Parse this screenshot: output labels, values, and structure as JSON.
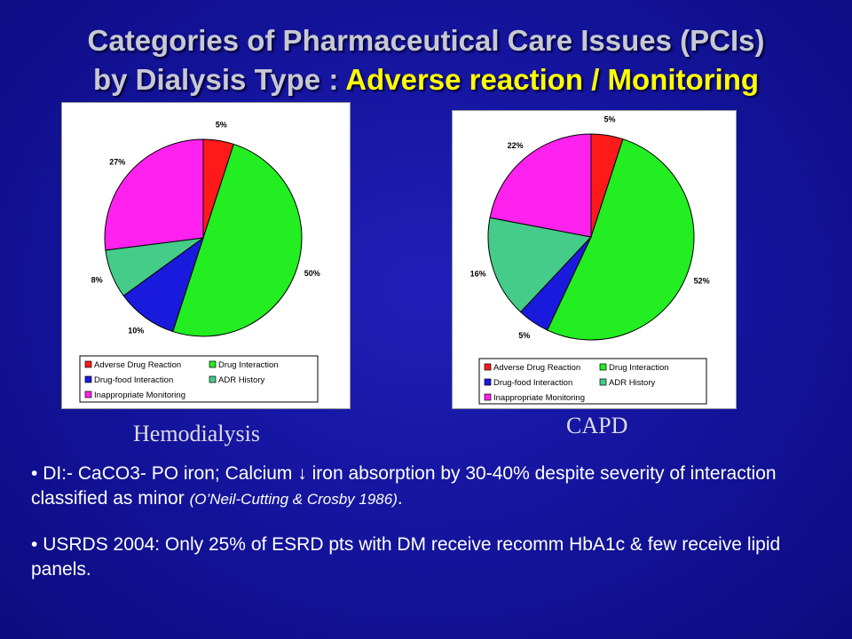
{
  "title": {
    "line1": "Categories of Pharmaceutical Care Issues (PCIs)",
    "line2_prefix": "by Dialysis Type : ",
    "line2_highlight": "Adverse reaction / Monitoring"
  },
  "legend_entries": [
    "Adverse Drug Reaction",
    "Drug Interaction",
    "Drug-food Interaction",
    "ADR History",
    "Inappropriate Monitoring"
  ],
  "colors": {
    "Adverse Drug Reaction": "#ff1a1a",
    "Drug Interaction": "#22ee22",
    "Drug-food Interaction": "#1a1add",
    "ADR History": "#44cc88",
    "Inappropriate Monitoring": "#ff22ee"
  },
  "chart_data": [
    {
      "type": "pie",
      "caption": "Hemodialysis",
      "legend_placement": "bottom",
      "categories": [
        "Adverse Drug Reaction",
        "Drug Interaction",
        "Drug-food Interaction",
        "ADR History",
        "Inappropriate Monitoring"
      ],
      "values": [
        5,
        50,
        10,
        8,
        27
      ],
      "labels": [
        "5%",
        "50%",
        "10%",
        "8%",
        "27%"
      ]
    },
    {
      "type": "pie",
      "caption": "CAPD",
      "legend_placement": "bottom",
      "categories": [
        "Adverse Drug Reaction",
        "Drug Interaction",
        "Drug-food Interaction",
        "ADR History",
        "Inappropriate Monitoring"
      ],
      "values": [
        5,
        52,
        5,
        16,
        22
      ],
      "labels": [
        "5%",
        "52%",
        "5%",
        "16%",
        "22%"
      ]
    }
  ],
  "bullets": [
    {
      "mark": "•",
      "part1": "DI:-  CaCO3- PO iron; Calcium ",
      "arrow": "↓",
      "part2": " iron absorption by 30-40% despite severity of interaction classified as minor ",
      "citation": "(O’Neil-Cutting & Crosby 1986)",
      "end": "."
    },
    {
      "mark": "•",
      "text": "USRDS 2004: Only 25% of ESRD pts with DM receive recomm HbA1c  & few receive lipid panels."
    }
  ]
}
